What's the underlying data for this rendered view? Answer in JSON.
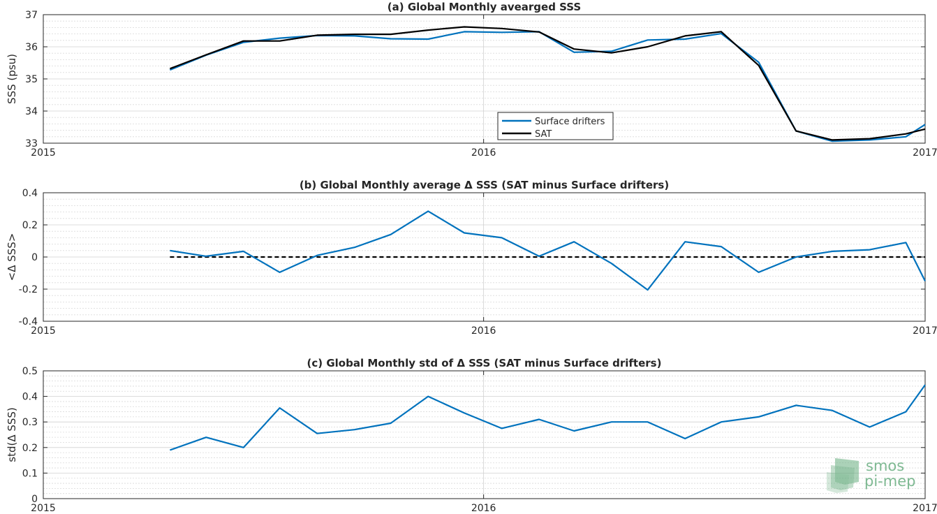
{
  "chart_data": [
    {
      "type": "line",
      "title": "(a) Global Monthly avearged SSS",
      "xlabel": "",
      "ylabel": "SSS (psu)",
      "xlim": [
        "2015-01-01",
        "2017-01-01"
      ],
      "ylim": [
        33,
        37
      ],
      "xticks": [
        "2015",
        "2016",
        "2017"
      ],
      "yticks": [
        "33",
        "34",
        "35",
        "36",
        "37"
      ],
      "grid": "minor-dashed",
      "legend_position": "lower-center",
      "x": [
        "2015-04-16",
        "2015-05-16",
        "2015-06-16",
        "2015-07-16",
        "2015-08-16",
        "2015-09-16",
        "2015-10-16",
        "2015-11-16",
        "2015-12-16",
        "2016-01-16",
        "2016-02-16",
        "2016-03-16",
        "2016-04-16",
        "2016-05-16",
        "2016-06-16",
        "2016-07-16",
        "2016-08-16",
        "2016-09-16",
        "2016-10-16",
        "2016-11-16",
        "2016-12-16",
        "2017-01-01"
      ],
      "series": [
        {
          "name": "Surface drifters",
          "color": "#0072BD",
          "values": [
            35.28,
            35.74,
            36.14,
            36.27,
            36.35,
            36.34,
            36.25,
            36.24,
            36.47,
            36.45,
            36.47,
            35.83,
            35.86,
            36.21,
            36.24,
            36.41,
            35.52,
            33.38,
            33.06,
            33.1,
            33.2,
            33.58
          ]
        },
        {
          "name": "SAT",
          "color": "#000000",
          "values": [
            35.32,
            35.75,
            36.18,
            36.18,
            36.36,
            36.39,
            36.39,
            36.52,
            36.62,
            36.57,
            36.46,
            35.93,
            35.81,
            36.0,
            36.34,
            36.47,
            35.42,
            33.38,
            33.1,
            33.14,
            33.29,
            33.44
          ]
        }
      ]
    },
    {
      "type": "line",
      "title": "(b) Global Monthly average Δ SSS (SAT minus Surface drifters)",
      "xlabel": "",
      "ylabel": "<Δ SSS>",
      "xlim": [
        "2015-01-01",
        "2017-01-01"
      ],
      "ylim": [
        -0.4,
        0.4
      ],
      "xticks": [
        "2015",
        "2016",
        "2017"
      ],
      "yticks": [
        "-0.4",
        "-0.2",
        "0",
        "0.2",
        "0.4"
      ],
      "grid": "minor-dashed",
      "x": [
        "2015-04-16",
        "2015-05-16",
        "2015-06-16",
        "2015-07-16",
        "2015-08-16",
        "2015-09-16",
        "2015-10-16",
        "2015-11-16",
        "2015-12-16",
        "2016-01-16",
        "2016-02-16",
        "2016-03-16",
        "2016-04-16",
        "2016-05-16",
        "2016-06-16",
        "2016-07-16",
        "2016-08-16",
        "2016-09-16",
        "2016-10-16",
        "2016-11-16",
        "2016-12-16",
        "2017-01-01"
      ],
      "series": [
        {
          "name": "",
          "color": "#0072BD",
          "values": [
            0.04,
            0.005,
            0.035,
            -0.095,
            0.01,
            0.06,
            0.14,
            0.285,
            0.15,
            0.12,
            0.005,
            0.095,
            -0.04,
            -0.205,
            0.095,
            0.065,
            -0.095,
            0.0,
            0.035,
            0.045,
            0.09,
            -0.15
          ]
        }
      ],
      "reference_line": {
        "y": 0,
        "x": [
          "2015-04-16",
          "2017-01-01"
        ],
        "style": "dashed",
        "color": "#000000"
      }
    },
    {
      "type": "line",
      "title": "(c) Global Monthly std of Δ SSS (SAT minus Surface drifters)",
      "xlabel": "",
      "ylabel": "std(Δ SSS)",
      "xlim": [
        "2015-01-01",
        "2017-01-01"
      ],
      "ylim": [
        0,
        0.5
      ],
      "xticks": [
        "2015",
        "2016",
        "2017"
      ],
      "yticks": [
        "0",
        "0.1",
        "0.2",
        "0.3",
        "0.4",
        "0.5"
      ],
      "grid": "minor-dashed",
      "x": [
        "2015-04-16",
        "2015-05-16",
        "2015-06-16",
        "2015-07-16",
        "2015-08-16",
        "2015-09-16",
        "2015-10-16",
        "2015-11-16",
        "2015-12-16",
        "2016-01-16",
        "2016-02-16",
        "2016-03-16",
        "2016-04-16",
        "2016-05-16",
        "2016-06-16",
        "2016-07-16",
        "2016-08-16",
        "2016-09-16",
        "2016-10-16",
        "2016-11-16",
        "2016-12-16",
        "2017-01-01"
      ],
      "series": [
        {
          "name": "",
          "color": "#0072BD",
          "values": [
            0.19,
            0.24,
            0.2,
            0.355,
            0.255,
            0.27,
            0.295,
            0.4,
            0.335,
            0.275,
            0.31,
            0.265,
            0.3,
            0.3,
            0.235,
            0.3,
            0.32,
            0.365,
            0.345,
            0.28,
            0.34,
            0.445
          ]
        }
      ]
    }
  ],
  "watermark": {
    "line1": "smos",
    "line2": "pi-mep",
    "color": "#5fa878"
  }
}
